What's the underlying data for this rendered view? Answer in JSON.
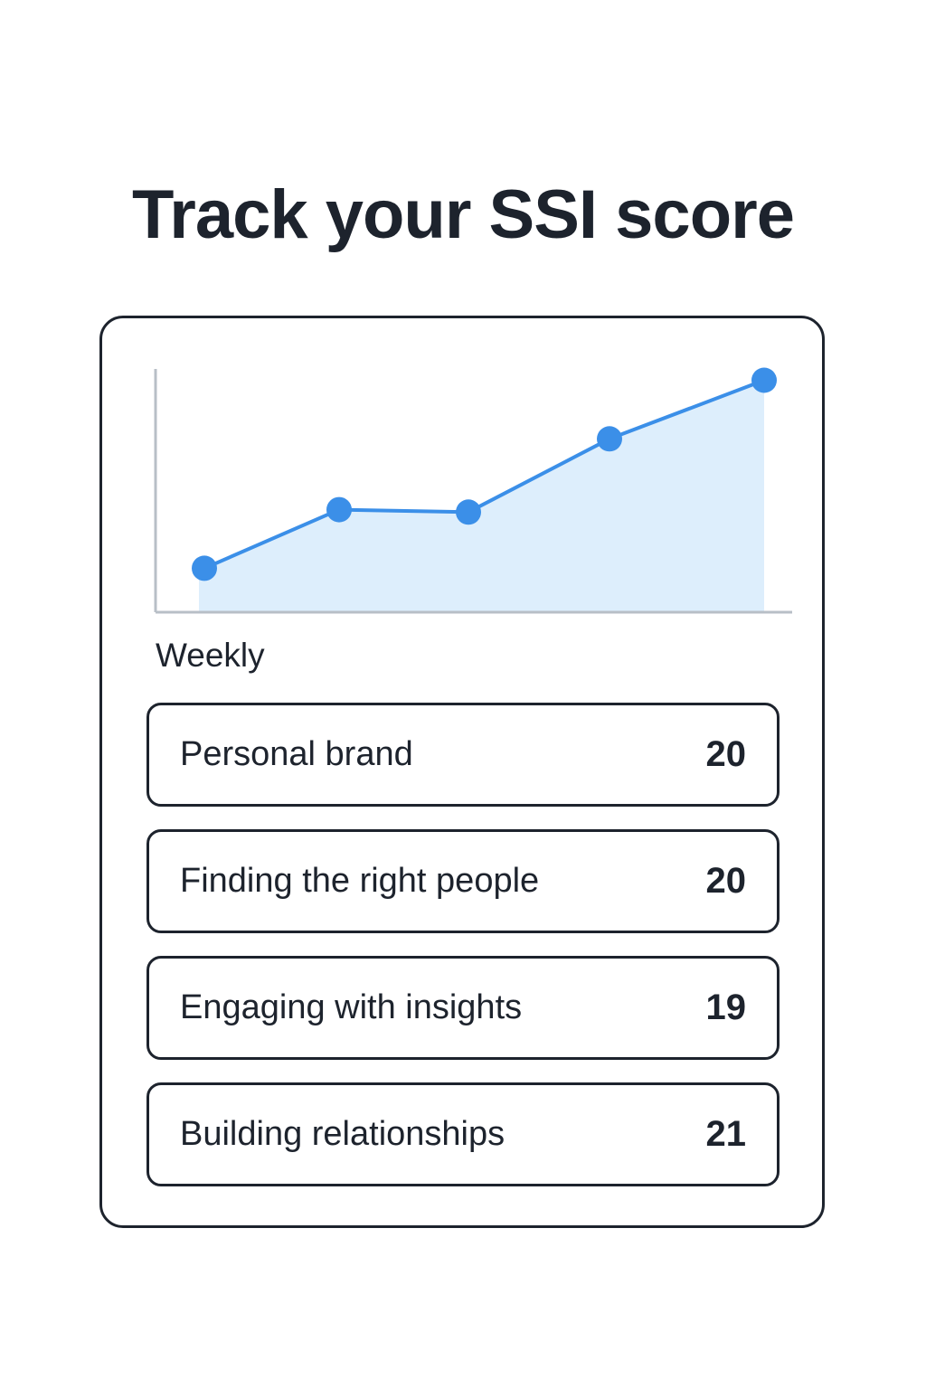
{
  "title": "Track your SSI score",
  "period_label": "Weekly",
  "colors": {
    "line": "#3b8fe8",
    "fill": "#ddeefc",
    "axis": "#b8bfc7",
    "border": "#1d232d"
  },
  "chart_data": {
    "type": "area",
    "x": [
      1,
      2,
      3,
      4,
      5
    ],
    "values": [
      0.18,
      0.42,
      0.41,
      0.71,
      0.95
    ],
    "title": "",
    "xlabel": "",
    "ylabel": "",
    "grid": false
  },
  "metrics": [
    {
      "label": "Personal brand",
      "value": "20"
    },
    {
      "label": "Finding the right people",
      "value": "20"
    },
    {
      "label": "Engaging with insights",
      "value": "19"
    },
    {
      "label": "Building relationships",
      "value": "21"
    }
  ]
}
